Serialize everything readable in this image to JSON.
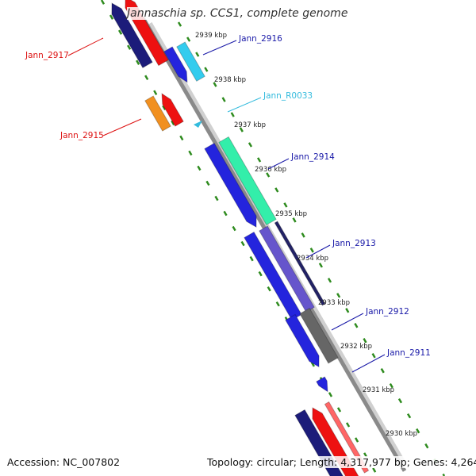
{
  "title": "Jannaschia sp. CCS1, complete genome",
  "footer": {
    "accession": "Accession: NC_007802",
    "topology": "Topology: circular; Length: 4,317,977 bp; Genes: 4,264"
  },
  "colors": {
    "axis": "#8a8a8a",
    "tick_dots": "#2e8b1e",
    "label_red": "#dd1111",
    "label_blue": "#1a1aa8",
    "label_cyan": "#33bbdd",
    "scale_text": "#222222"
  },
  "scale_ticks": [
    "2939 kbp",
    "2938 kbp",
    "2937 kbp",
    "2936 kbp",
    "2935 kbp",
    "2934 kbp",
    "2933 kbp",
    "2932 kbp",
    "2931 kbp",
    "2930 kbp"
  ],
  "gene_labels": [
    {
      "name": "Jann_2917",
      "strand": "minus",
      "color": "#dd1111"
    },
    {
      "name": "Jann_2916",
      "strand": "plus",
      "color": "#1a1aa8"
    },
    {
      "name": "Jann_R0033",
      "strand": "plus",
      "color": "#33bbdd"
    },
    {
      "name": "Jann_2915",
      "strand": "minus",
      "color": "#dd1111"
    },
    {
      "name": "Jann_2914",
      "strand": "plus",
      "color": "#1a1aa8"
    },
    {
      "name": "Jann_2913",
      "strand": "plus",
      "color": "#1a1aa8"
    },
    {
      "name": "Jann_2912",
      "strand": "plus",
      "color": "#1a1aa8"
    },
    {
      "name": "Jann_2911",
      "strand": "plus",
      "color": "#1a1aa8"
    }
  ],
  "gene_icons": [
    "arrow-feature-icon",
    "rect-feature-icon"
  ]
}
